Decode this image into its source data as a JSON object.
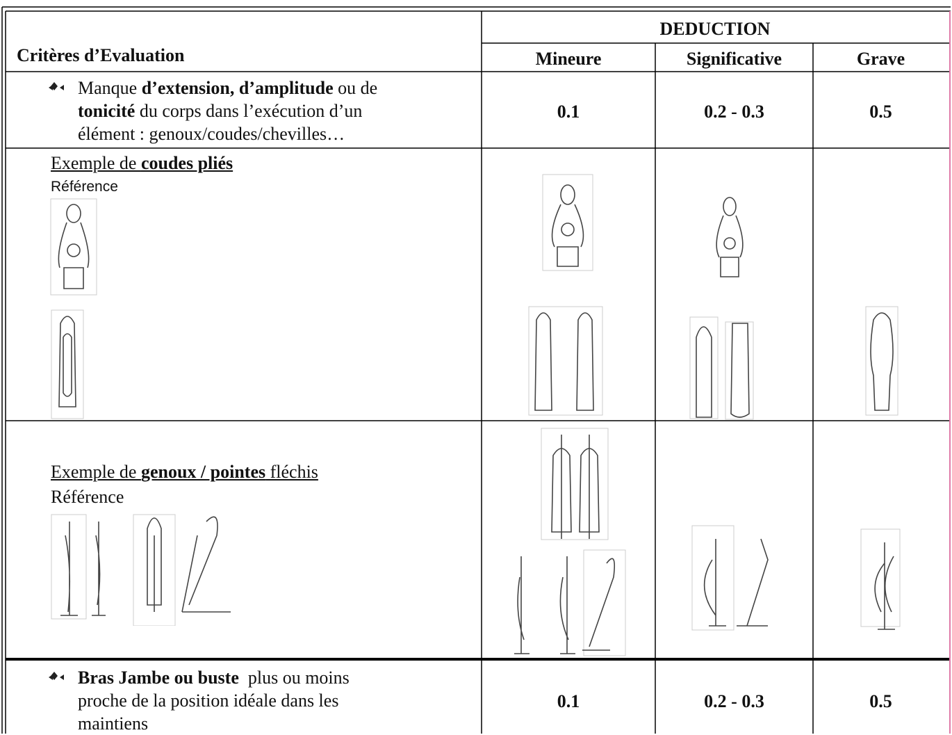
{
  "table": {
    "header": {
      "criteria": "Critères d’Evaluation",
      "group": "DEDUCTION",
      "columns": [
        "Mineure",
        "Significative",
        "Grave"
      ]
    },
    "rows": [
      {
        "criterion": [
          [
            "Manque ",
            "d’extension, d’amplitude",
            " ou de"
          ],
          [
            "tonicité",
            " du corps dans l’exécution d’un"
          ],
          [
            "élément : genoux/coudes/chevilles…"
          ]
        ],
        "values": [
          "0.1",
          "0.2 - 0.3",
          "0.5"
        ]
      },
      {
        "criterion": [
          [
            "Bras Jambe ou buste",
            "  plus ou moins"
          ],
          [
            "proche de la position idéale dans les"
          ],
          [
            "maintiens"
          ]
        ],
        "values": [
          "0.1",
          "0.2 - 0.3",
          "0.5"
        ]
      }
    ],
    "examples": [
      {
        "title": [
          "Exemple de ",
          "coudes pliés"
        ],
        "reference": "Référence"
      },
      {
        "title": [
          "Exemple de ",
          "genoux / pointes",
          " fléchis"
        ],
        "reference": "Référence"
      }
    ]
  }
}
